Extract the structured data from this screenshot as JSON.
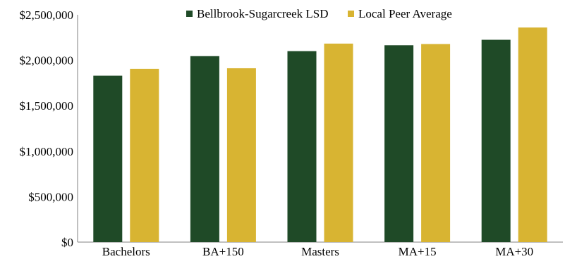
{
  "chart_data": {
    "type": "bar",
    "categories": [
      "Bachelors",
      "BA+150",
      "Masters",
      "MA+15",
      "MA+30"
    ],
    "series": [
      {
        "name": "Bellbrook-Sugarcreek LSD",
        "color": "#1f4a27",
        "values": [
          1830000,
          2045000,
          2100000,
          2165000,
          2225000
        ]
      },
      {
        "name": "Local Peer Average",
        "color": "#d8b432",
        "values": [
          1905000,
          1912000,
          2183000,
          2178000,
          2360000
        ]
      }
    ],
    "y_ticks": [
      "$0",
      "$500,000",
      "$1,000,000",
      "$1,500,000",
      "$2,000,000",
      "$2,500,000"
    ],
    "ylim": [
      0,
      2500000
    ],
    "title": "",
    "xlabel": "",
    "ylabel": "",
    "grid": false,
    "legend_position": "top-center"
  }
}
